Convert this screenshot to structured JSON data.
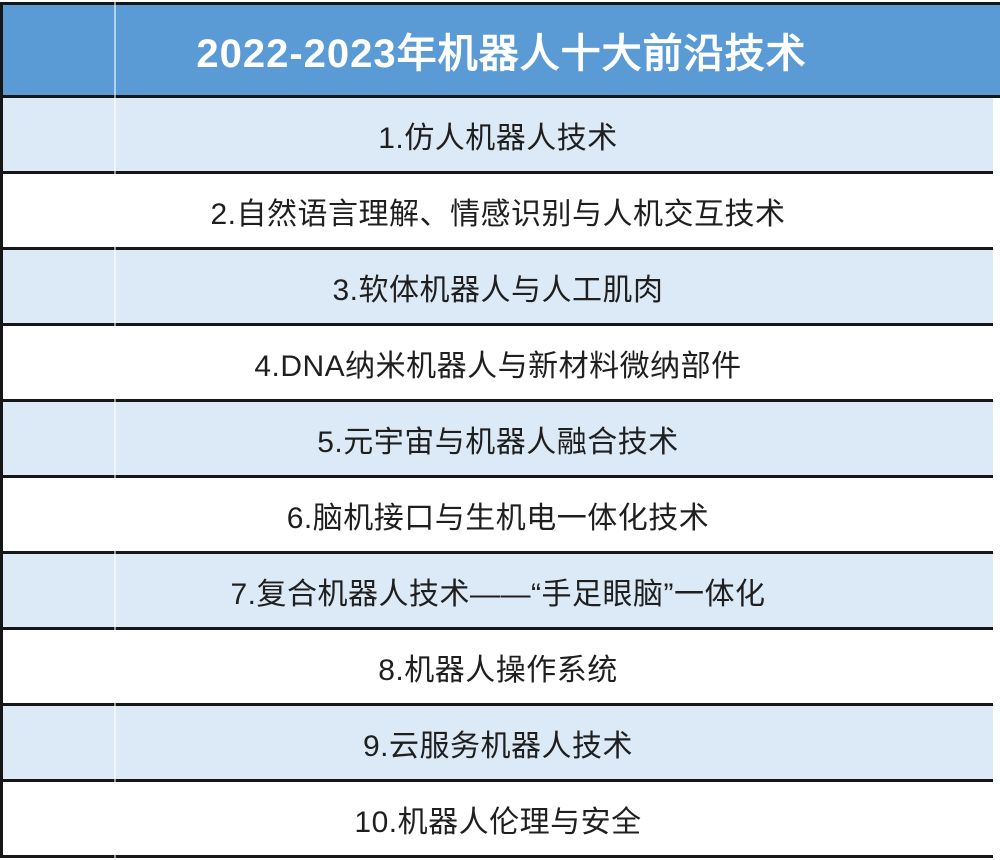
{
  "chart_data": {
    "type": "table",
    "title": "2022-2023年机器人十大前沿技术",
    "rows": [
      "1.仿人机器人技术",
      "2.自然语言理解、情感识别与人机交互技术",
      "3.软体机器人与人工肌肉",
      "4.DNA纳米机器人与新材料微纳部件",
      "5.元宇宙与机器人融合技术",
      "6.脑机接口与生机电一体化技术",
      "7.复合机器人技术——“手足眼脑”一体化",
      "8.机器人操作系统",
      "9.云服务机器人技术",
      "10.机器人伦理与安全"
    ],
    "layout": {
      "header_bg": "#5b9bd5",
      "header_text_color": "#ffffff",
      "row_alt_bg": "#dce9f6",
      "row_bg": "#ffffff",
      "border_color": "#161616",
      "text_color": "#1f1f1f",
      "legend": "none",
      "grid": "thick horizontal rules between rows, faint vertical gridline at left column boundary"
    }
  }
}
